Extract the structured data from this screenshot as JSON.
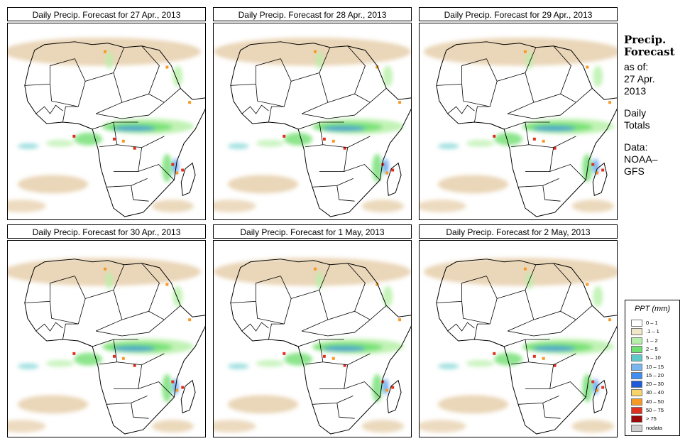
{
  "panels": [
    {
      "title": "Daily Precip. Forecast for  27 Apr., 2013",
      "key": "p1"
    },
    {
      "title": "Daily Precip. Forecast for  28 Apr., 2013",
      "key": "p2"
    },
    {
      "title": "Daily Precip. Forecast for  29 Apr., 2013",
      "key": "p3"
    },
    {
      "title": "Daily Precip. Forecast for  30 Apr., 2013",
      "key": "p4"
    },
    {
      "title": "Daily Precip. Forecast for  1 May, 2013",
      "key": "p5"
    },
    {
      "title": "Daily Precip. Forecast for  2 May, 2013",
      "key": "p6"
    }
  ],
  "side": {
    "title_line1": "Precip.",
    "title_line2": "Forecast",
    "asof_line1": "as of:",
    "asof_line2": "27 Apr.",
    "asof_line3": "2013",
    "totals_line1": "Daily",
    "totals_line2": "Totals",
    "data_line1": "Data:",
    "data_line2": "NOAA–",
    "data_line3": "GFS"
  },
  "legend": {
    "title": "PPT (mm)",
    "items": [
      {
        "label": "0 – 1",
        "color": "#ffffff"
      },
      {
        "label": ".1 – 1",
        "color": "#f2e6c8"
      },
      {
        "label": "1 – 2",
        "color": "#b6f0a8"
      },
      {
        "label": "2 – 5",
        "color": "#6fdf6f"
      },
      {
        "label": "5 – 10",
        "color": "#5fc9c9"
      },
      {
        "label": "10 – 15",
        "color": "#79b6ef"
      },
      {
        "label": "15 – 20",
        "color": "#3f8ef0"
      },
      {
        "label": "20 – 30",
        "color": "#1f5ad8"
      },
      {
        "label": "30 – 40",
        "color": "#f7d36a"
      },
      {
        "label": "40 – 50",
        "color": "#f59a26"
      },
      {
        "label": "50 – 75",
        "color": "#e0301e"
      },
      {
        "label": "> 75",
        "color": "#9a0a0a"
      },
      {
        "label": "nodata",
        "color": "#cfcfcf"
      }
    ]
  },
  "colors": {
    "land": "#ffffff",
    "border": "#000000",
    "tan": "#e8d2b0",
    "light_green": "#b6f0a8",
    "green": "#6fdf6f",
    "cyan": "#5fc9c9",
    "blue": "#3f8ef0",
    "dark_blue": "#1f5ad8",
    "red": "#e0301e",
    "orange": "#f59a26"
  }
}
